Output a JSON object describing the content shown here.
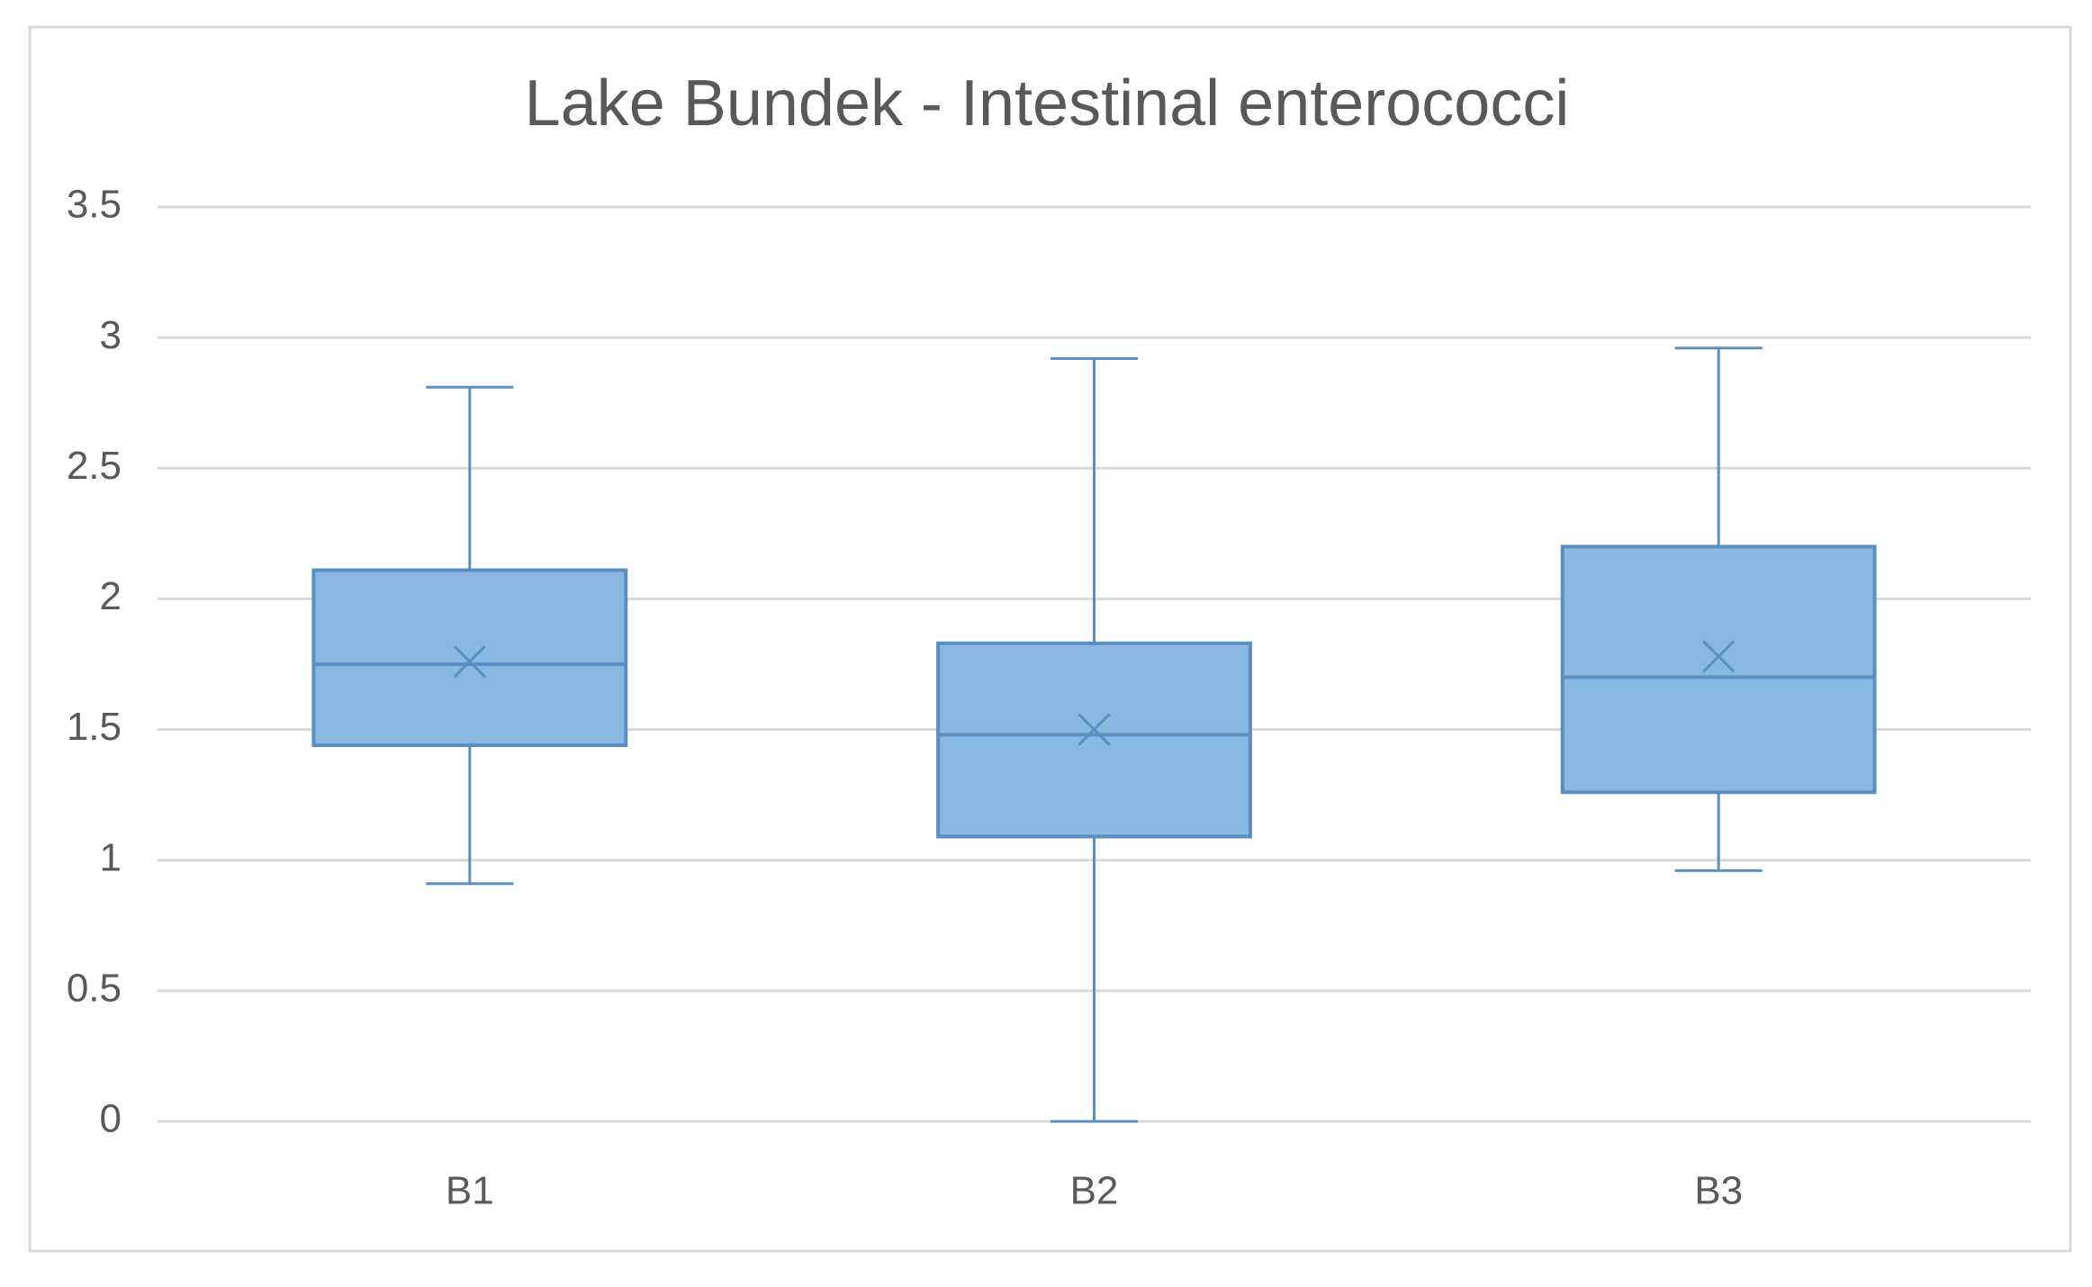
{
  "chart_data": {
    "type": "box",
    "title": "Lake Bundek - Intestinal enterococci",
    "categories": [
      "B1",
      "B2",
      "B3"
    ],
    "boxes": [
      {
        "min": 0.91,
        "q1": 1.44,
        "median": 1.75,
        "q3": 2.11,
        "max": 2.81,
        "mean": 1.76
      },
      {
        "min": 0,
        "q1": 1.09,
        "median": 1.48,
        "q3": 1.83,
        "max": 2.92,
        "mean": 1.5
      },
      {
        "min": 0.96,
        "q1": 1.26,
        "median": 1.7,
        "q3": 2.2,
        "max": 2.96,
        "mean": 1.78
      }
    ],
    "color": "#8ab8e0",
    "edge_color": "#5b8fc4",
    "ylim": [
      0,
      3.5
    ],
    "yticks": [
      0,
      0.5,
      1,
      1.5,
      2,
      2.5,
      3,
      3.5
    ],
    "grid": true
  }
}
